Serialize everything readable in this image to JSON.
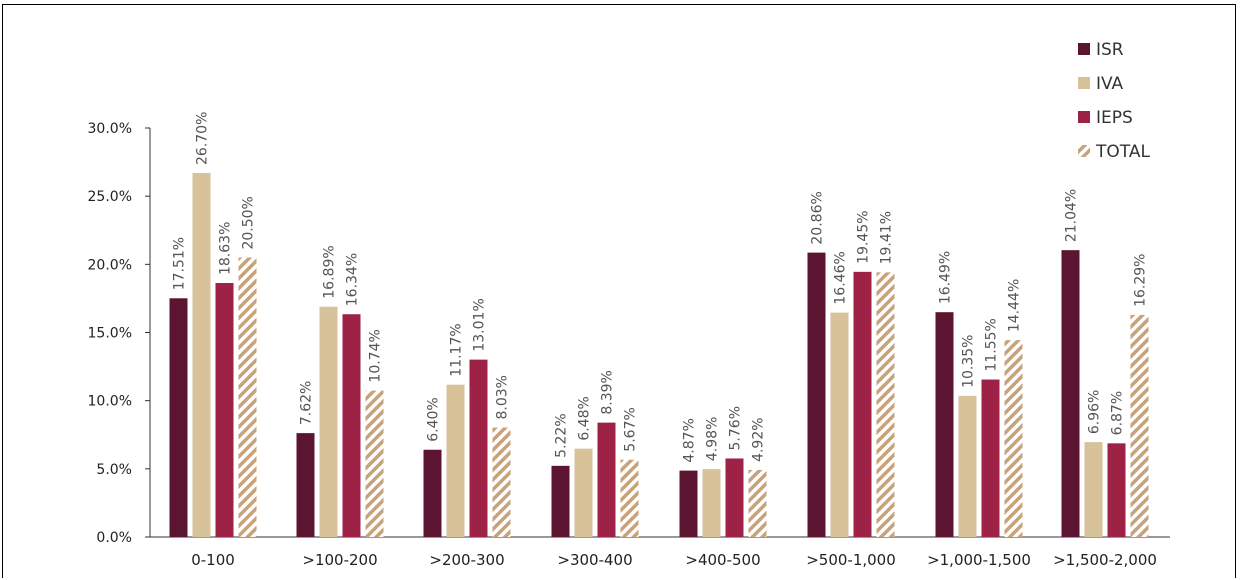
{
  "chart_data": {
    "type": "bar",
    "categories": [
      "0-100",
      ">100-200",
      ">200-300",
      ">300-400",
      ">400-500",
      ">500-1,000",
      ">1,000-1,500",
      ">1,500-2,000"
    ],
    "series": [
      {
        "name": "ISR",
        "color": "#5c1530",
        "pattern": "solid",
        "values": [
          17.51,
          7.62,
          6.4,
          5.22,
          4.87,
          20.86,
          16.49,
          21.04
        ],
        "labels": [
          "17.51%",
          "7.62%",
          "6.40%",
          "5.22%",
          "4.87%",
          "20.86%",
          "16.49%",
          "21.04%"
        ]
      },
      {
        "name": "IVA",
        "color": "#d7c29a",
        "pattern": "solid",
        "values": [
          26.7,
          16.89,
          11.17,
          6.48,
          4.98,
          16.46,
          10.35,
          6.96
        ],
        "labels": [
          "26.70%",
          "16.89%",
          "11.17%",
          "6.48%",
          "4.98%",
          "16.46%",
          "10.35%",
          "6.96%"
        ]
      },
      {
        "name": "IEPS",
        "color": "#9e2146",
        "pattern": "solid",
        "values": [
          18.63,
          16.34,
          13.01,
          8.39,
          5.76,
          19.45,
          11.55,
          6.87
        ],
        "labels": [
          "18.63%",
          "16.34%",
          "13.01%",
          "8.39%",
          "5.76%",
          "19.45%",
          "11.55%",
          "6.87%"
        ]
      },
      {
        "name": "TOTAL",
        "color": "#c7a27a",
        "pattern": "hatched",
        "values": [
          20.5,
          10.74,
          8.03,
          5.67,
          4.92,
          19.41,
          14.44,
          16.29
        ],
        "labels": [
          "20.50%",
          "10.74%",
          "8.03%",
          "5.67%",
          "4.92%",
          "19.41%",
          "14.44%",
          "16.29%"
        ]
      }
    ],
    "yticks": [
      "0.0%",
      "5.0%",
      "10.0%",
      "15.0%",
      "20.0%",
      "25.0%",
      "30.0%"
    ],
    "ytick_values": [
      0,
      5,
      10,
      15,
      20,
      25,
      30
    ],
    "ylim": [
      0,
      30
    ],
    "grid": false,
    "legend_position": "top-right"
  }
}
